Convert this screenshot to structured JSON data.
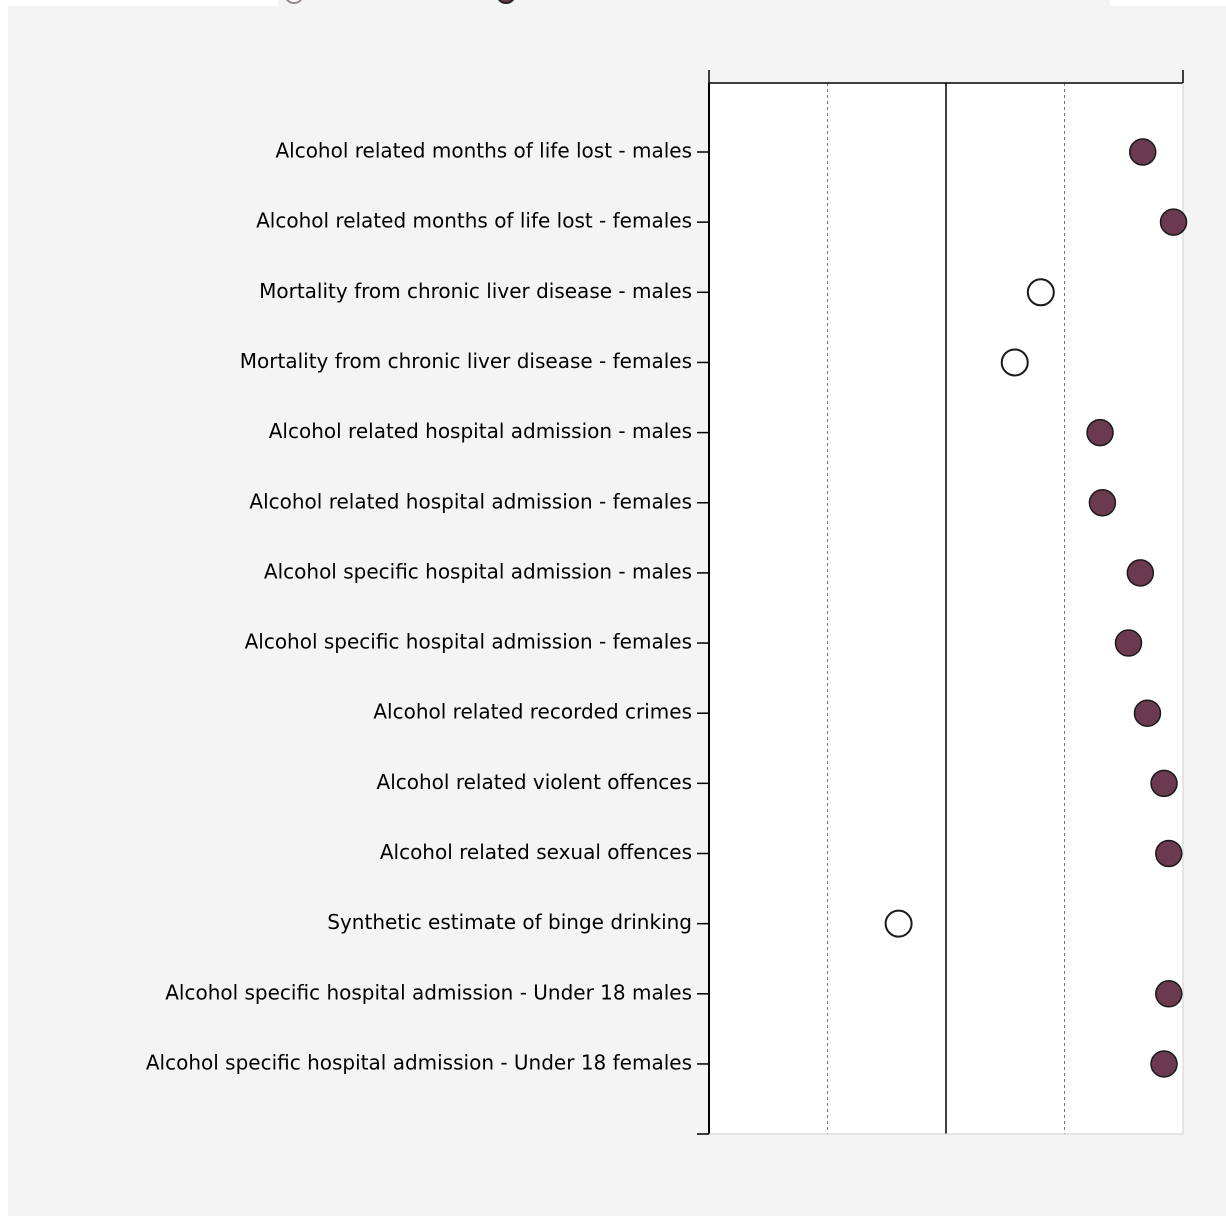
{
  "chart_data": {
    "type": "scatter",
    "title": "",
    "xlabel": "",
    "ylabel": "",
    "xlim": [
      0,
      1
    ],
    "grid": "vertical dashed lines at quartiles, solid line at median",
    "categories": [
      "Alcohol related months of life lost - males",
      "Alcohol related months of life lost - females",
      "Mortality from chronic liver disease - males",
      "Mortality from chronic liver disease - females",
      "Alcohol related hospital admission - males",
      "Alcohol related hospital admission - females",
      "Alcohol specific hospital admission - males",
      "Alcohol specific hospital admission - females",
      "Alcohol related recorded crimes",
      "Alcohol related violent offences",
      "Alcohol related sexual offences",
      "Synthetic estimate of binge drinking",
      "Alcohol specific hospital admission - Under 18 males",
      "Alcohol specific hospital admission - Under 18 females"
    ],
    "points": [
      {
        "value": 0.915,
        "style": "filled"
      },
      {
        "value": 0.98,
        "style": "filled"
      },
      {
        "value": 0.7,
        "style": "open"
      },
      {
        "value": 0.645,
        "style": "open"
      },
      {
        "value": 0.825,
        "style": "filled"
      },
      {
        "value": 0.83,
        "style": "filled"
      },
      {
        "value": 0.91,
        "style": "filled"
      },
      {
        "value": 0.885,
        "style": "filled"
      },
      {
        "value": 0.925,
        "style": "filled"
      },
      {
        "value": 0.96,
        "style": "filled"
      },
      {
        "value": 0.97,
        "style": "filled"
      },
      {
        "value": 0.4,
        "style": "open"
      },
      {
        "value": 0.97,
        "style": "filled"
      },
      {
        "value": 0.96,
        "style": "filled"
      }
    ],
    "colors": {
      "filled": "#6b3a4e",
      "open": "#ffffff",
      "marker_stroke": "#1a1a1a",
      "panel_bg": "#f4f4f4",
      "plot_bg": "#ffffff"
    }
  }
}
